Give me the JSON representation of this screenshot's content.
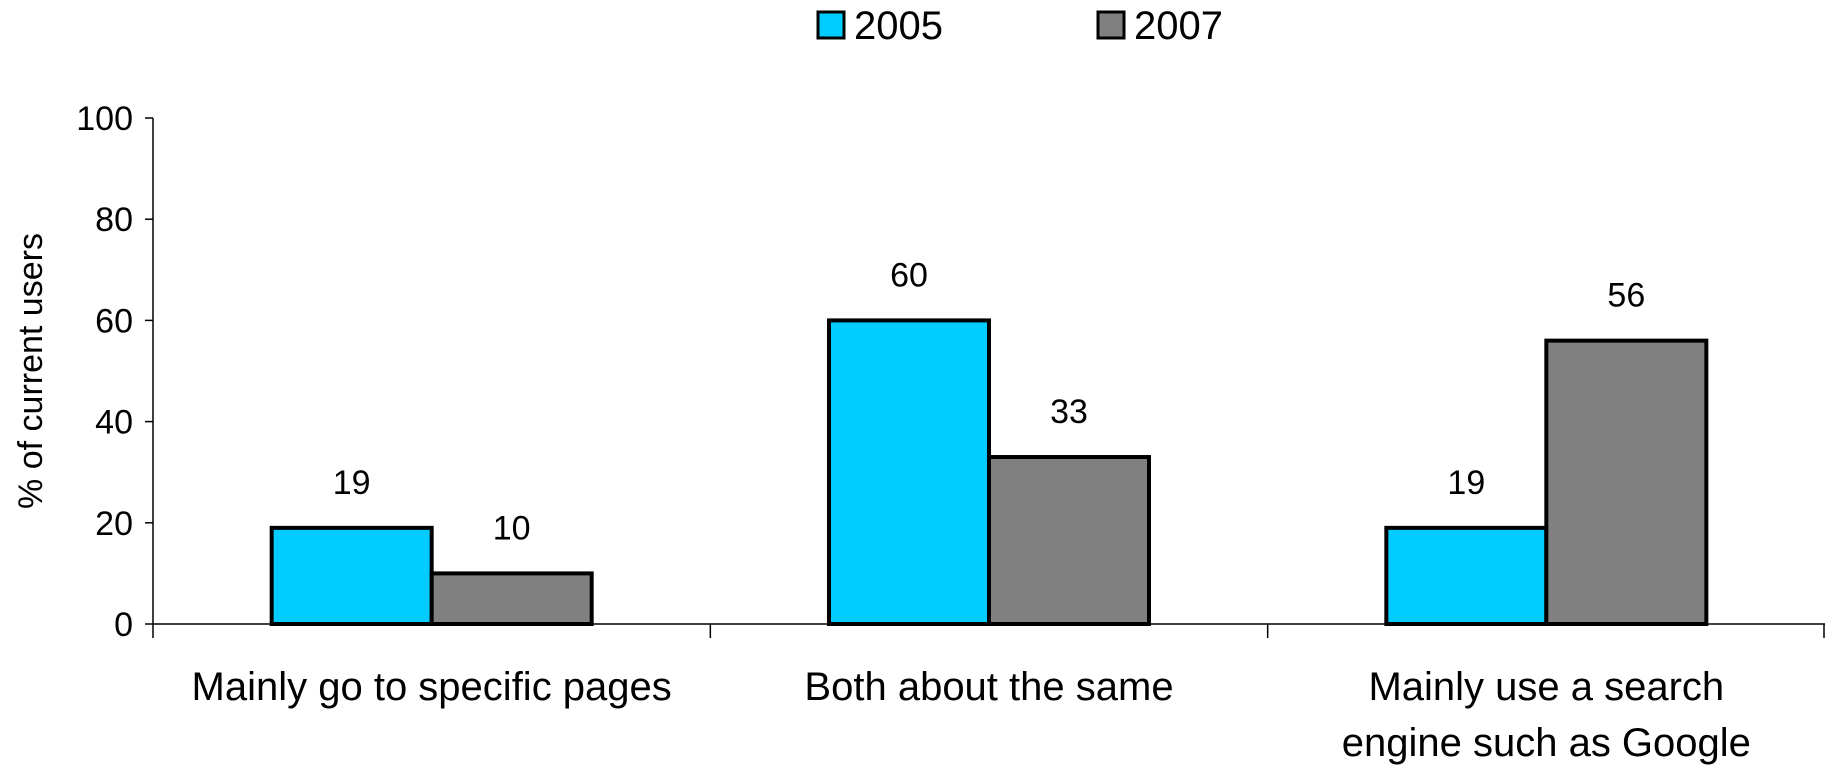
{
  "chart_data": {
    "type": "bar",
    "title": "",
    "xlabel": "",
    "ylabel": "% of current users",
    "ylim": [
      0,
      100
    ],
    "yticks": [
      "0",
      "20",
      "40",
      "60",
      "80",
      "100"
    ],
    "grid": false,
    "legend_position": "top-center",
    "categories": [
      [
        "Mainly go to specific pages"
      ],
      [
        "Both about the same"
      ],
      [
        "Mainly use a search",
        "engine such as Google"
      ]
    ],
    "series": [
      {
        "name": "2005",
        "color": "#00ccff",
        "values": [
          19,
          60,
          19
        ]
      },
      {
        "name": "2007",
        "color": "#808080",
        "values": [
          10,
          33,
          56
        ]
      }
    ],
    "data_labels": true
  }
}
